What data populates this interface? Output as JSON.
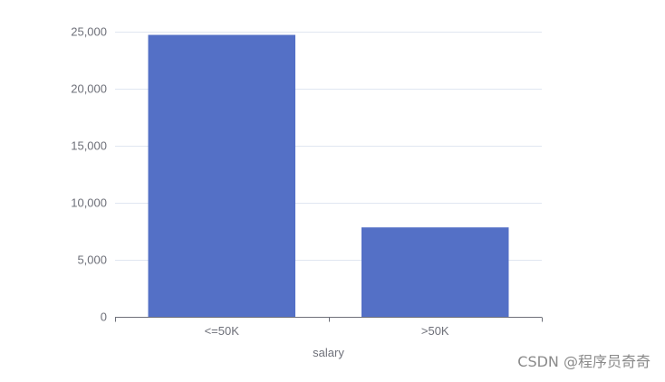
{
  "chart_data": {
    "type": "bar",
    "categories": [
      "<=50K",
      ">50K"
    ],
    "values": [
      24720,
      7841
    ],
    "xlabel": "salary",
    "ylabel": "",
    "ylim": [
      0,
      25000
    ],
    "yticks": [
      0,
      5000,
      10000,
      15000,
      20000,
      25000
    ],
    "ytick_labels": [
      "0",
      "5,000",
      "10,000",
      "15,000",
      "20,000",
      "25,000"
    ],
    "grid": true,
    "legend": "none"
  },
  "colors": {
    "bar": "#5470c6",
    "grid": "#e0e6f1",
    "axis": "#6e7079",
    "text": "#6e7079"
  },
  "watermark": {
    "text": "CSDN @程序员奇奇"
  }
}
